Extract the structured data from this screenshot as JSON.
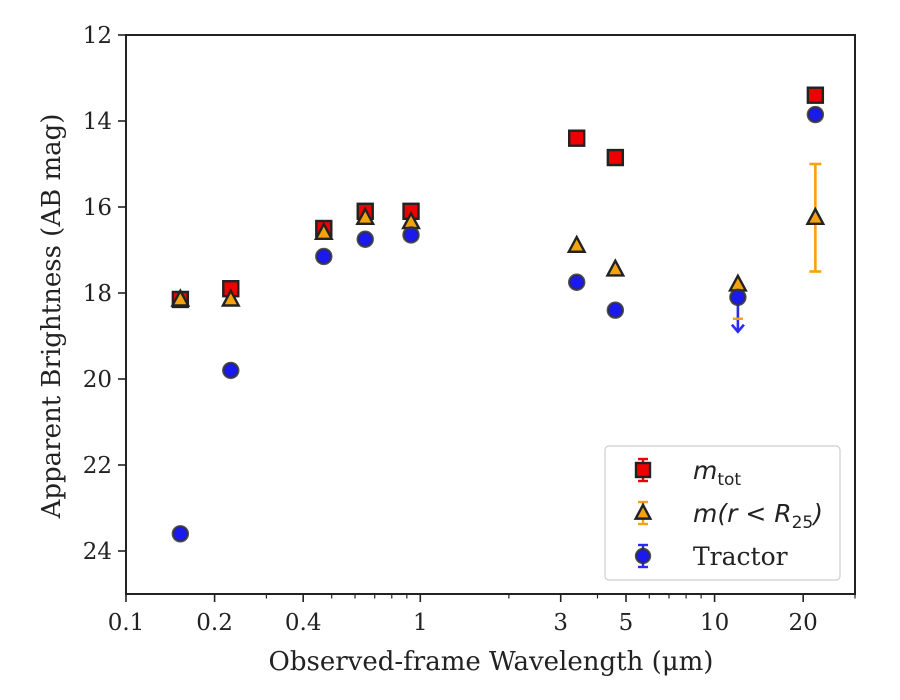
{
  "chart_data": {
    "type": "scatter",
    "xlabel": "Observed-frame Wavelength (μm)",
    "ylabel": "Apparent Brightness (AB mag)",
    "x_scale": "log",
    "xlim": [
      0.1,
      30
    ],
    "ylim": [
      25,
      12
    ],
    "y_inverted": true,
    "grid": false,
    "legend_position": "lower-right",
    "x_ticks": [
      0.1,
      0.2,
      0.4,
      1,
      3,
      5,
      10,
      20
    ],
    "x_tick_labels": [
      "0.1",
      "0.2",
      "0.4",
      "1",
      "3",
      "5",
      "10",
      "20"
    ],
    "y_ticks": [
      12,
      14,
      16,
      18,
      20,
      22,
      24
    ],
    "y_tick_labels": [
      "12",
      "14",
      "16",
      "18",
      "20",
      "22",
      "24"
    ],
    "series": [
      {
        "name": "m_tot",
        "legend_main": "m",
        "legend_sub": "tot",
        "marker": "square",
        "color": "#ee0000",
        "edge_color": "#222222",
        "error_color": "#ee0000",
        "points": [
          {
            "x": 0.153,
            "y": 18.15
          },
          {
            "x": 0.227,
            "y": 17.9
          },
          {
            "x": 0.47,
            "y": 16.5
          },
          {
            "x": 0.65,
            "y": 16.1
          },
          {
            "x": 0.93,
            "y": 16.1
          },
          {
            "x": 3.4,
            "y": 14.4
          },
          {
            "x": 4.6,
            "y": 14.85
          },
          {
            "x": 22,
            "y": 13.4
          }
        ]
      },
      {
        "name": "m(r < R25)",
        "legend_main": "m(r < R",
        "legend_sub": "25",
        "legend_tail": ")",
        "marker": "triangle",
        "color": "#f5a20f",
        "edge_color": "#222222",
        "error_color": "#f5a20f",
        "points": [
          {
            "x": 0.153,
            "y": 18.15
          },
          {
            "x": 0.227,
            "y": 18.15
          },
          {
            "x": 0.47,
            "y": 16.6
          },
          {
            "x": 0.65,
            "y": 16.25
          },
          {
            "x": 0.93,
            "y": 16.35
          },
          {
            "x": 3.4,
            "y": 16.9
          },
          {
            "x": 4.6,
            "y": 17.45
          },
          {
            "x": 12,
            "y": 17.8
          },
          {
            "x": 22,
            "y": 16.25,
            "yerr_low": 15.0,
            "yerr_high": 17.5
          }
        ]
      },
      {
        "name": "Tractor",
        "marker": "circle",
        "color": "#1a1aee",
        "edge_color": "#333333",
        "error_color": "#2a2af0",
        "points": [
          {
            "x": 0.153,
            "y": 23.6
          },
          {
            "x": 0.227,
            "y": 19.8
          },
          {
            "x": 0.47,
            "y": 17.15
          },
          {
            "x": 0.65,
            "y": 16.75
          },
          {
            "x": 0.93,
            "y": 16.65
          },
          {
            "x": 3.4,
            "y": 17.75
          },
          {
            "x": 4.6,
            "y": 18.4
          },
          {
            "x": 12,
            "y": 18.1,
            "upper_limit": true,
            "limit_to": 18.9
          },
          {
            "x": 22,
            "y": 13.85
          }
        ]
      }
    ]
  }
}
